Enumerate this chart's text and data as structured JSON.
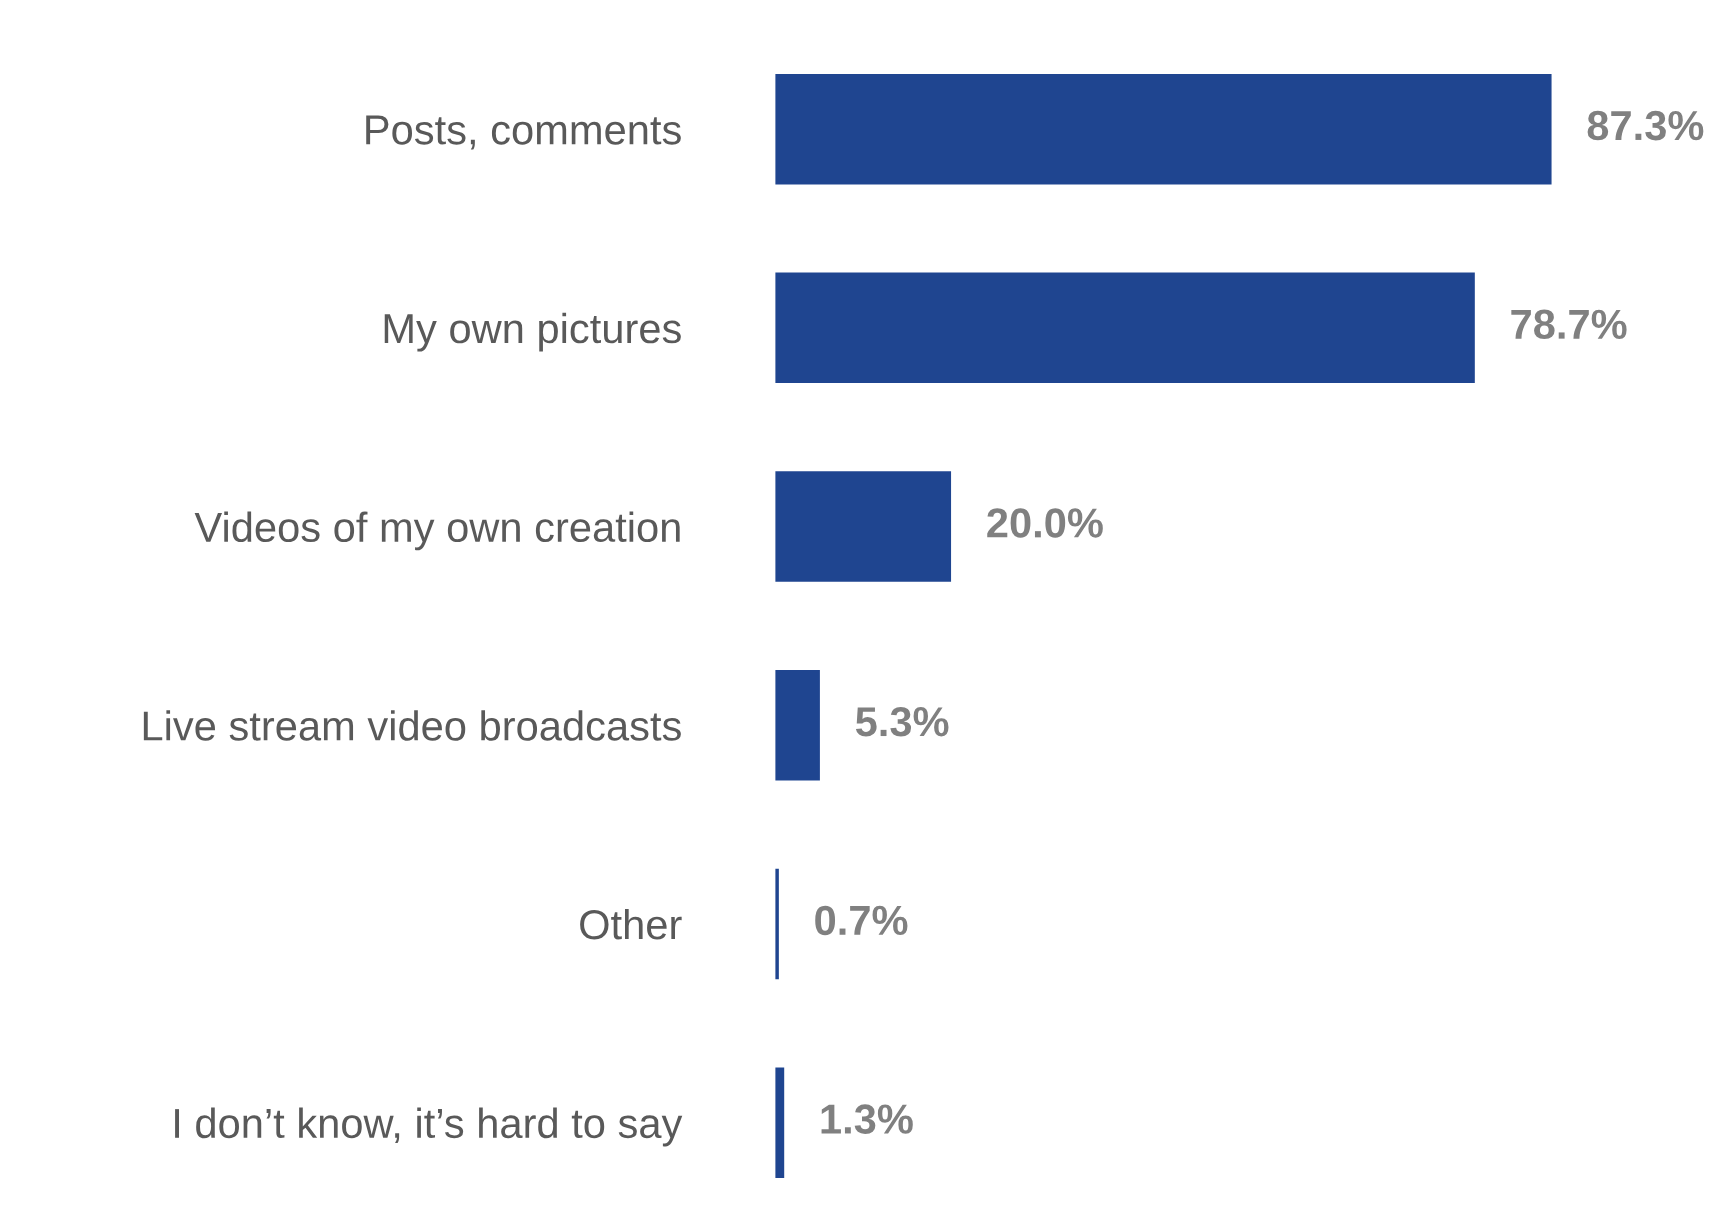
{
  "chart_data": {
    "type": "bar",
    "orientation": "horizontal",
    "categories": [
      "Posts, comments",
      "My own pictures",
      "Videos of my own creation",
      "Live stream video broadcasts",
      "Other",
      "I don’t know, it’s hard to say"
    ],
    "values": [
      87.3,
      78.7,
      20.0,
      5.3,
      0.7,
      1.3
    ],
    "value_labels": [
      "87.3%",
      "78.7%",
      "20.0%",
      "5.3%",
      "0.7%",
      "1.3%"
    ],
    "color": "#1f4590",
    "grid": false,
    "legend": false
  }
}
